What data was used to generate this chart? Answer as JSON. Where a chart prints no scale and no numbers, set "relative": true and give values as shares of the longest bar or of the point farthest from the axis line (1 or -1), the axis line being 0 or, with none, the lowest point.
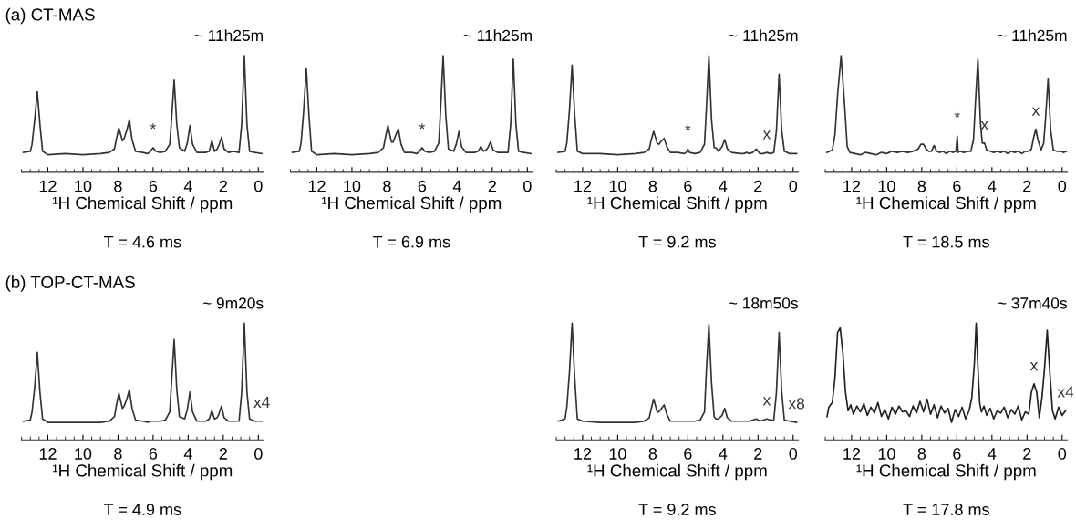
{
  "chart_data": [
    {
      "type": "line",
      "relative": true,
      "tick_labels": "x",
      "title": "(a) CT-MAS",
      "subtitle": "~ 11h25m",
      "xlabel": "¹H Chemical Shift / ppm",
      "xlim": [
        13.5,
        -0.3
      ],
      "xticks": [
        12,
        10,
        8,
        6,
        4,
        2,
        0
      ],
      "x": [
        13.4,
        13.0,
        12.9,
        12.75,
        12.6,
        12.45,
        12.3,
        12.0,
        11.0,
        10.0,
        9.0,
        8.5,
        8.2,
        8.1,
        7.95,
        7.75,
        7.65,
        7.5,
        7.35,
        7.2,
        7.0,
        6.6,
        6.3,
        6.15,
        6.0,
        5.85,
        5.6,
        5.3,
        5.05,
        4.95,
        4.8,
        4.65,
        4.5,
        4.2,
        4.05,
        3.9,
        3.75,
        3.5,
        3.0,
        2.8,
        2.65,
        2.5,
        2.35,
        2.25,
        2.1,
        1.95,
        1.7,
        1.4,
        1.1,
        0.95,
        0.8,
        0.65,
        0.5,
        0.2,
        -0.2
      ],
      "series": [
        {
          "color": "#333333",
          "values": [
            0.17,
            0.18,
            0.24,
            0.45,
            0.69,
            0.41,
            0.18,
            0.15,
            0.16,
            0.15,
            0.16,
            0.17,
            0.2,
            0.28,
            0.38,
            0.27,
            0.29,
            0.36,
            0.45,
            0.28,
            0.18,
            0.17,
            0.16,
            0.18,
            0.21,
            0.18,
            0.17,
            0.18,
            0.24,
            0.45,
            0.79,
            0.41,
            0.21,
            0.18,
            0.25,
            0.4,
            0.24,
            0.17,
            0.17,
            0.18,
            0.27,
            0.18,
            0.2,
            0.23,
            0.3,
            0.2,
            0.17,
            0.18,
            0.17,
            0.41,
            1.0,
            0.41,
            0.18,
            0.17,
            0.16
          ]
        }
      ],
      "annotations": [
        {
          "text": "*",
          "x": 6.0,
          "y": 0.21
        },
        "T = 4.6 ms"
      ]
    },
    {
      "type": "line",
      "relative": true,
      "tick_labels": "x",
      "subtitle": "~ 11h25m",
      "xlabel": "¹H Chemical Shift / ppm",
      "xlim": [
        13.5,
        -0.3
      ],
      "xticks": [
        12,
        10,
        8,
        6,
        4,
        2,
        0
      ],
      "x": [
        13.4,
        13.0,
        12.9,
        12.75,
        12.6,
        12.45,
        12.3,
        12.0,
        11.0,
        10.0,
        9.0,
        8.5,
        8.2,
        8.1,
        7.95,
        7.75,
        7.65,
        7.5,
        7.35,
        7.2,
        7.0,
        6.6,
        6.3,
        6.15,
        6.0,
        5.85,
        5.6,
        5.3,
        5.05,
        4.95,
        4.8,
        4.65,
        4.5,
        4.2,
        4.05,
        3.9,
        3.75,
        3.5,
        3.0,
        2.8,
        2.65,
        2.5,
        2.35,
        2.25,
        2.1,
        1.95,
        1.7,
        1.4,
        1.1,
        0.95,
        0.8,
        0.65,
        0.5,
        0.2,
        -0.2
      ],
      "series": [
        {
          "color": "#333333",
          "values": [
            0.17,
            0.18,
            0.25,
            0.53,
            0.89,
            0.49,
            0.18,
            0.15,
            0.16,
            0.15,
            0.16,
            0.17,
            0.21,
            0.29,
            0.4,
            0.26,
            0.26,
            0.32,
            0.37,
            0.24,
            0.17,
            0.17,
            0.16,
            0.18,
            0.21,
            0.18,
            0.17,
            0.18,
            0.25,
            0.53,
            1.0,
            0.49,
            0.2,
            0.18,
            0.24,
            0.35,
            0.22,
            0.17,
            0.17,
            0.18,
            0.22,
            0.18,
            0.19,
            0.21,
            0.26,
            0.19,
            0.17,
            0.17,
            0.17,
            0.41,
            0.97,
            0.41,
            0.18,
            0.17,
            0.16
          ]
        }
      ],
      "annotations": [
        {
          "text": "*",
          "x": 6.0,
          "y": 0.21
        },
        "T = 6.9 ms"
      ]
    },
    {
      "type": "line",
      "relative": true,
      "tick_labels": "x",
      "subtitle": "~ 11h25m",
      "xlabel": "¹H Chemical Shift / ppm",
      "xlim": [
        13.5,
        -0.3
      ],
      "xticks": [
        12,
        10,
        8,
        6,
        4,
        2,
        0
      ],
      "x": [
        13.4,
        13.0,
        12.9,
        12.75,
        12.6,
        12.45,
        12.3,
        12.0,
        11.0,
        10.0,
        9.0,
        8.5,
        8.2,
        8.1,
        7.95,
        7.75,
        7.65,
        7.5,
        7.35,
        7.2,
        7.0,
        6.6,
        6.2,
        6.1,
        6.0,
        5.9,
        5.6,
        5.3,
        5.05,
        4.95,
        4.8,
        4.65,
        4.5,
        4.4,
        4.25,
        4.05,
        3.9,
        3.75,
        3.5,
        3.0,
        2.8,
        2.65,
        2.5,
        2.3,
        2.1,
        1.9,
        1.7,
        1.5,
        1.3,
        1.1,
        0.95,
        0.8,
        0.65,
        0.5,
        0.2,
        -0.2
      ],
      "series": [
        {
          "color": "#333333",
          "values": [
            0.17,
            0.18,
            0.25,
            0.53,
            0.92,
            0.49,
            0.18,
            0.16,
            0.16,
            0.15,
            0.16,
            0.17,
            0.2,
            0.27,
            0.35,
            0.25,
            0.24,
            0.27,
            0.29,
            0.22,
            0.17,
            0.17,
            0.16,
            0.17,
            0.2,
            0.17,
            0.16,
            0.17,
            0.24,
            0.53,
            1.0,
            0.45,
            0.21,
            0.21,
            0.18,
            0.22,
            0.28,
            0.2,
            0.17,
            0.16,
            0.16,
            0.17,
            0.16,
            0.17,
            0.2,
            0.16,
            0.16,
            0.17,
            0.16,
            0.17,
            0.36,
            0.84,
            0.36,
            0.18,
            0.16,
            0.16
          ]
        }
      ],
      "annotations": [
        {
          "text": "*",
          "x": 6.0,
          "y": 0.2
        },
        {
          "text": "x",
          "x": 1.5,
          "y": 0.17
        },
        "T = 9.2 ms"
      ]
    },
    {
      "type": "line",
      "relative": true,
      "tick_labels": "x",
      "subtitle": "~ 11h25m",
      "xlabel": "¹H Chemical Shift / ppm",
      "xlim": [
        13.5,
        -0.3
      ],
      "xticks": [
        12,
        10,
        8,
        6,
        4,
        2,
        0
      ],
      "x": [
        13.4,
        13.1,
        12.95,
        12.8,
        12.6,
        12.4,
        12.25,
        12.1,
        11.8,
        11.5,
        11.2,
        10.9,
        10.6,
        10.3,
        10.0,
        9.7,
        9.4,
        9.1,
        8.8,
        8.5,
        8.2,
        8.05,
        7.9,
        7.75,
        7.6,
        7.45,
        7.3,
        7.15,
        7.0,
        6.8,
        6.6,
        6.4,
        6.2,
        6.05,
        5.98,
        5.93,
        5.85,
        5.6,
        5.4,
        5.2,
        5.05,
        4.95,
        4.8,
        4.65,
        4.55,
        4.42,
        4.3,
        4.1,
        3.9,
        3.7,
        3.5,
        3.3,
        3.1,
        2.9,
        2.7,
        2.5,
        2.3,
        2.1,
        1.9,
        1.75,
        1.62,
        1.5,
        1.38,
        1.2,
        1.05,
        0.95,
        0.8,
        0.65,
        0.5,
        0.3,
        0.1,
        -0.1,
        -0.25
      ],
      "series": [
        {
          "color": "#333333",
          "values": [
            0.17,
            0.19,
            0.32,
            0.66,
            1.0,
            0.58,
            0.22,
            0.17,
            0.16,
            0.15,
            0.17,
            0.16,
            0.15,
            0.17,
            0.16,
            0.18,
            0.17,
            0.18,
            0.17,
            0.18,
            0.2,
            0.24,
            0.24,
            0.2,
            0.18,
            0.18,
            0.23,
            0.18,
            0.17,
            0.18,
            0.16,
            0.18,
            0.17,
            0.18,
            0.31,
            0.17,
            0.18,
            0.17,
            0.18,
            0.18,
            0.28,
            0.58,
            0.97,
            0.41,
            0.25,
            0.25,
            0.19,
            0.18,
            0.17,
            0.18,
            0.17,
            0.18,
            0.16,
            0.18,
            0.17,
            0.18,
            0.16,
            0.18,
            0.18,
            0.2,
            0.3,
            0.37,
            0.28,
            0.19,
            0.25,
            0.45,
            0.8,
            0.36,
            0.19,
            0.18,
            0.18,
            0.17,
            0.18
          ]
        }
      ],
      "annotations": [
        {
          "text": "*",
          "x": 5.98,
          "y": 0.31
        },
        {
          "text": "x",
          "x": 4.42,
          "y": 0.25
        },
        {
          "text": "x",
          "x": 1.5,
          "y": 0.37
        },
        "T = 18.5 ms"
      ]
    },
    {
      "type": "line",
      "relative": true,
      "tick_labels": "x",
      "title": "(b) TOP-CT-MAS",
      "subtitle": "~ 9m20s",
      "xlabel": "¹H Chemical Shift / ppm",
      "xlim": [
        13.5,
        -0.3
      ],
      "xticks": [
        12,
        10,
        8,
        6,
        4,
        2,
        0
      ],
      "x": [
        13.4,
        13.0,
        12.9,
        12.75,
        12.6,
        12.45,
        12.3,
        12.0,
        11.0,
        10.0,
        9.0,
        8.5,
        8.2,
        8.1,
        7.95,
        7.75,
        7.65,
        7.5,
        7.35,
        7.2,
        7.0,
        6.6,
        6.3,
        6.15,
        6.0,
        5.85,
        5.6,
        5.3,
        5.05,
        4.95,
        4.8,
        4.65,
        4.5,
        4.2,
        4.05,
        3.9,
        3.75,
        3.5,
        3.0,
        2.8,
        2.65,
        2.5,
        2.35,
        2.25,
        2.1,
        1.95,
        1.7,
        1.4,
        1.1,
        0.95,
        0.8,
        0.65,
        0.5,
        0.2,
        -0.2
      ],
      "series": [
        {
          "color": "#333333",
          "values": [
            0.16,
            0.17,
            0.24,
            0.45,
            0.75,
            0.41,
            0.18,
            0.15,
            0.15,
            0.15,
            0.15,
            0.16,
            0.2,
            0.29,
            0.4,
            0.27,
            0.29,
            0.35,
            0.43,
            0.27,
            0.17,
            0.16,
            0.15,
            0.16,
            0.16,
            0.16,
            0.16,
            0.17,
            0.24,
            0.49,
            0.86,
            0.43,
            0.2,
            0.18,
            0.26,
            0.41,
            0.24,
            0.16,
            0.16,
            0.18,
            0.25,
            0.18,
            0.19,
            0.22,
            0.29,
            0.19,
            0.16,
            0.16,
            0.16,
            0.41,
            1.0,
            0.41,
            0.18,
            0.16,
            0.16
          ]
        }
      ],
      "annotations": [
        {
          "text": "x4",
          "x": -0.2,
          "y": 0.16
        },
        "T = 4.9 ms"
      ]
    },
    {
      "type": "line",
      "relative": true,
      "tick_labels": "x",
      "subtitle": "~ 18m50s",
      "xlabel": "¹H Chemical Shift / ppm",
      "xlim": [
        13.5,
        -0.3
      ],
      "xticks": [
        12,
        10,
        8,
        6,
        4,
        2,
        0
      ],
      "x": [
        13.4,
        13.0,
        12.9,
        12.75,
        12.6,
        12.45,
        12.3,
        12.0,
        11.0,
        10.0,
        9.0,
        8.5,
        8.2,
        8.1,
        7.95,
        7.75,
        7.65,
        7.5,
        7.35,
        7.2,
        7.0,
        6.6,
        6.2,
        6.1,
        6.0,
        5.9,
        5.6,
        5.3,
        5.05,
        4.95,
        4.8,
        4.65,
        4.5,
        4.4,
        4.25,
        4.05,
        3.9,
        3.75,
        3.5,
        3.0,
        2.8,
        2.65,
        2.5,
        2.3,
        2.1,
        1.9,
        1.7,
        1.5,
        1.3,
        1.1,
        0.95,
        0.8,
        0.65,
        0.5,
        0.2,
        -0.2
      ],
      "series": [
        {
          "color": "#333333",
          "values": [
            0.16,
            0.18,
            0.28,
            0.58,
            1.0,
            0.53,
            0.18,
            0.16,
            0.15,
            0.15,
            0.15,
            0.16,
            0.19,
            0.26,
            0.35,
            0.24,
            0.24,
            0.27,
            0.3,
            0.22,
            0.16,
            0.16,
            0.16,
            0.16,
            0.16,
            0.16,
            0.16,
            0.17,
            0.24,
            0.58,
            0.99,
            0.49,
            0.2,
            0.18,
            0.18,
            0.21,
            0.27,
            0.19,
            0.16,
            0.16,
            0.16,
            0.16,
            0.16,
            0.17,
            0.18,
            0.16,
            0.17,
            0.18,
            0.17,
            0.17,
            0.41,
            0.92,
            0.41,
            0.17,
            0.16,
            0.15
          ]
        }
      ],
      "annotations": [
        {
          "text": "x",
          "x": 1.5,
          "y": 0.18
        },
        {
          "text": "x8",
          "x": -0.2,
          "y": 0.15
        },
        "T = 9.2 ms"
      ]
    },
    {
      "type": "line",
      "relative": true,
      "tick_labels": "x",
      "subtitle": "~ 37m40s",
      "xlabel": "¹H Chemical Shift / ppm",
      "xlim": [
        13.5,
        -0.3
      ],
      "xticks": [
        12,
        10,
        8,
        6,
        4,
        2,
        0
      ],
      "x": [
        13.4,
        13.3,
        13.1,
        12.95,
        12.8,
        12.65,
        12.5,
        12.35,
        12.2,
        12.05,
        11.9,
        11.7,
        11.5,
        11.3,
        11.1,
        10.9,
        10.7,
        10.5,
        10.3,
        10.1,
        9.9,
        9.7,
        9.5,
        9.3,
        9.1,
        8.9,
        8.7,
        8.5,
        8.3,
        8.1,
        7.9,
        7.7,
        7.5,
        7.3,
        7.1,
        6.9,
        6.7,
        6.5,
        6.3,
        6.1,
        5.9,
        5.7,
        5.5,
        5.3,
        5.15,
        5.0,
        4.9,
        4.8,
        4.7,
        4.6,
        4.45,
        4.3,
        4.1,
        3.9,
        3.7,
        3.5,
        3.3,
        3.1,
        2.9,
        2.7,
        2.5,
        2.3,
        2.1,
        1.9,
        1.75,
        1.6,
        1.45,
        1.3,
        1.15,
        1.0,
        0.85,
        0.7,
        0.55,
        0.4,
        0.2,
        0.0,
        -0.2
      ],
      "series": [
        {
          "color": "#222222",
          "values": [
            0.2,
            0.28,
            0.32,
            0.53,
            0.92,
            0.96,
            0.75,
            0.41,
            0.25,
            0.3,
            0.22,
            0.29,
            0.24,
            0.31,
            0.21,
            0.28,
            0.23,
            0.32,
            0.2,
            0.26,
            0.18,
            0.28,
            0.22,
            0.29,
            0.24,
            0.25,
            0.2,
            0.29,
            0.23,
            0.33,
            0.24,
            0.35,
            0.22,
            0.3,
            0.19,
            0.29,
            0.23,
            0.27,
            0.15,
            0.26,
            0.2,
            0.28,
            0.18,
            0.25,
            0.36,
            0.66,
            1.0,
            0.62,
            0.32,
            0.24,
            0.29,
            0.21,
            0.27,
            0.18,
            0.25,
            0.23,
            0.28,
            0.19,
            0.26,
            0.22,
            0.29,
            0.17,
            0.24,
            0.22,
            0.41,
            0.48,
            0.41,
            0.19,
            0.36,
            0.62,
            0.94,
            0.58,
            0.25,
            0.18,
            0.28,
            0.21,
            0.25
          ]
        }
      ],
      "annotations": [
        {
          "text": "x",
          "x": 1.6,
          "y": 0.48
        },
        {
          "text": "x4",
          "x": -0.2,
          "y": 0.25
        },
        "T = 17.8 ms"
      ]
    }
  ]
}
